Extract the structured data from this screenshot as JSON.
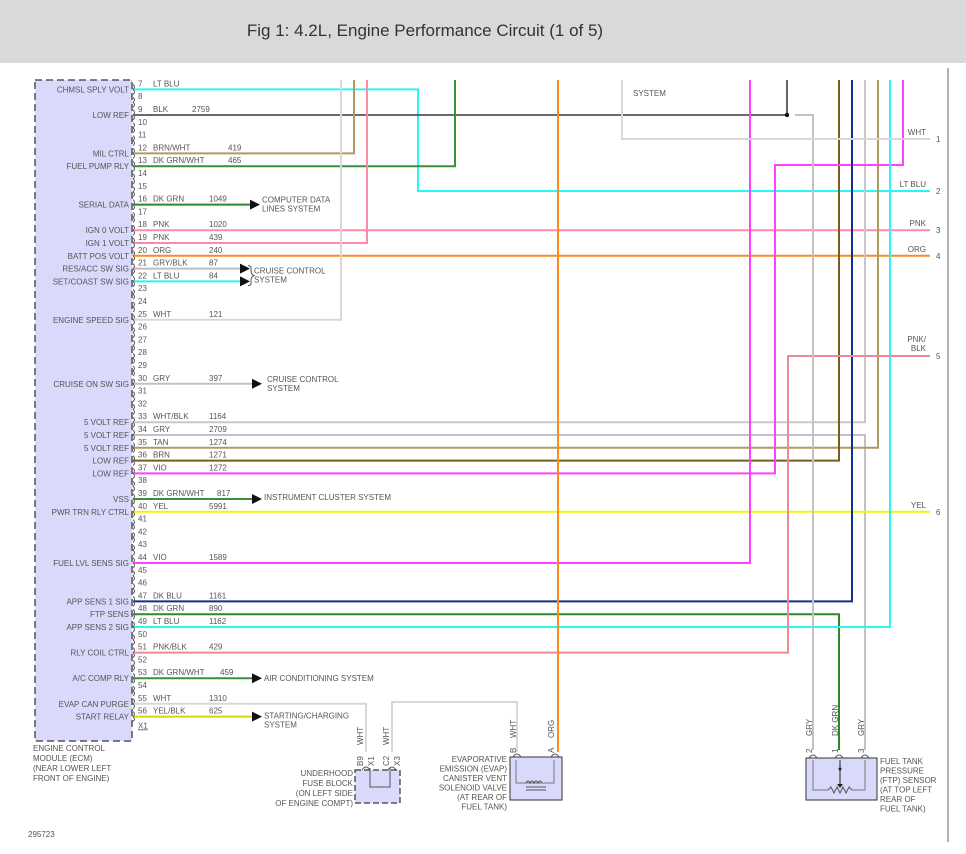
{
  "header": {
    "title": "Fig 1: 4.2L, Engine Performance Circuit (1 of 5)"
  },
  "wire_colors": {
    "BLK": "#555555",
    "BRN/WHT": "#b09a60",
    "DK GRN/WHT": "#3a8f3a",
    "DK GRN": "#2a8a2a",
    "PNK": "#ff8aa8",
    "ORG": "#ff8c1a",
    "GRY/BLK": "#bdbdbd",
    "LT BLU": "#2af5f5",
    "WHT": "#d8d8d8",
    "GRY": "#c2c2c2",
    "WHT/BLK": "#c8c8c8",
    "TAN": "#b09a60",
    "BRN": "#7a5c1e",
    "VIO": "#ff40ff",
    "YEL": "#f5f500",
    "DK BLU": "#12308a",
    "PNK/BLK": "#f08898",
    "YEL/BLK": "#d8d800"
  },
  "ecm": {
    "label": [
      "ENGINE CONTROL",
      "MODULE (ECM)",
      "(NEAR LOWER LEFT",
      "FRONT OF ENGINE)"
    ],
    "connector": "X1",
    "fill": "#d9d9fb",
    "pins": [
      {
        "pin": "7",
        "name": "CHMSL SPLY VOLT",
        "color": "LT BLU",
        "circuit": ""
      },
      {
        "pin": "8"
      },
      {
        "pin": "9",
        "name": "LOW REF",
        "color": "BLK",
        "circuit": "2759"
      },
      {
        "pin": "10"
      },
      {
        "pin": "11"
      },
      {
        "pin": "12",
        "name": "MIL CTRL",
        "color": "BRN/WHT",
        "circuit": "419"
      },
      {
        "pin": "13",
        "name": "FUEL PUMP RLY",
        "color": "DK GRN/WHT",
        "circuit": "465"
      },
      {
        "pin": "14"
      },
      {
        "pin": "15"
      },
      {
        "pin": "16",
        "name": "SERIAL DATA",
        "color": "DK GRN",
        "circuit": "1049"
      },
      {
        "pin": "17"
      },
      {
        "pin": "18",
        "name": "IGN 0 VOLT",
        "color": "PNK",
        "circuit": "1020"
      },
      {
        "pin": "19",
        "name": "IGN 1 VOLT",
        "color": "PNK",
        "circuit": "439"
      },
      {
        "pin": "20",
        "name": "BATT POS VOLT",
        "color": "ORG",
        "circuit": "240"
      },
      {
        "pin": "21",
        "name": "RES/ACC SW SIG",
        "color": "GRY/BLK",
        "circuit": "87"
      },
      {
        "pin": "22",
        "name": "SET/COAST SW SIG",
        "color": "LT BLU",
        "circuit": "84"
      },
      {
        "pin": "23"
      },
      {
        "pin": "24"
      },
      {
        "pin": "25",
        "name": "ENGINE SPEED SIG",
        "color": "WHT",
        "circuit": "121"
      },
      {
        "pin": "26"
      },
      {
        "pin": "27"
      },
      {
        "pin": "28"
      },
      {
        "pin": "29"
      },
      {
        "pin": "30",
        "name": "CRUISE ON SW SIG",
        "color": "GRY",
        "circuit": "397"
      },
      {
        "pin": "31"
      },
      {
        "pin": "32"
      },
      {
        "pin": "33",
        "name": "5 VOLT REF",
        "color": "WHT/BLK",
        "circuit": "1164"
      },
      {
        "pin": "34",
        "name": "5 VOLT REF",
        "color": "GRY",
        "circuit": "2709"
      },
      {
        "pin": "35",
        "name": "5 VOLT REF",
        "color": "TAN",
        "circuit": "1274"
      },
      {
        "pin": "36",
        "name": "LOW REF",
        "color": "BRN",
        "circuit": "1271"
      },
      {
        "pin": "37",
        "name": "LOW REF",
        "color": "VIO",
        "circuit": "1272"
      },
      {
        "pin": "38"
      },
      {
        "pin": "39",
        "name": "VSS",
        "color": "DK GRN/WHT",
        "circuit": "817"
      },
      {
        "pin": "40",
        "name": "PWR TRN RLY CTRL",
        "color": "YEL",
        "circuit": "5991"
      },
      {
        "pin": "41"
      },
      {
        "pin": "42"
      },
      {
        "pin": "43"
      },
      {
        "pin": "44",
        "name": "FUEL LVL SENS SIG",
        "color": "VIO",
        "circuit": "1589"
      },
      {
        "pin": "45"
      },
      {
        "pin": "46"
      },
      {
        "pin": "47",
        "name": "APP SENS 1 SIG",
        "color": "DK BLU",
        "circuit": "1161"
      },
      {
        "pin": "48",
        "name": "FTP SENS",
        "color": "DK GRN",
        "circuit": "890"
      },
      {
        "pin": "49",
        "name": "APP SENS 2 SIG",
        "color": "LT BLU",
        "circuit": "1162"
      },
      {
        "pin": "50"
      },
      {
        "pin": "51",
        "name": "RLY COIL CTRL",
        "color": "PNK/BLK",
        "circuit": "429"
      },
      {
        "pin": "52"
      },
      {
        "pin": "53",
        "name": "A/C COMP RLY",
        "color": "DK GRN/WHT",
        "circuit": "459"
      },
      {
        "pin": "54"
      },
      {
        "pin": "55",
        "name": "EVAP CAN PURGE",
        "color": "WHT",
        "circuit": "1310"
      },
      {
        "pin": "56",
        "name": "START RELAY",
        "color": "YEL/BLK",
        "circuit": "625"
      }
    ]
  },
  "destinations": [
    {
      "pin": "16",
      "label": [
        "COMPUTER DATA",
        "LINES SYSTEM"
      ]
    },
    {
      "pin": "21-22",
      "label": [
        "CRUISE CONTROL",
        "SYSTEM"
      ]
    },
    {
      "pin": "30",
      "label": [
        "CRUISE CONTROL",
        "SYSTEM"
      ]
    },
    {
      "pin": "39",
      "label": [
        "INSTRUMENT CLUSTER SYSTEM"
      ]
    },
    {
      "pin": "53",
      "label": [
        "AIR CONDITIONING SYSTEM"
      ]
    },
    {
      "pin": "56",
      "label": [
        "STARTING/CHARGING",
        "SYSTEM"
      ]
    }
  ],
  "lights_system_label": "SYSTEM",
  "right_connector": [
    {
      "num": "1",
      "color": "WHT"
    },
    {
      "num": "2",
      "color": "LT BLU"
    },
    {
      "num": "3",
      "color": "PNK"
    },
    {
      "num": "4",
      "color": "ORG"
    },
    {
      "num": "5",
      "color": "PNK/ BLK"
    },
    {
      "num": "6",
      "color": "YEL"
    }
  ],
  "fuse_block": {
    "label": [
      "UNDERHOOD",
      "FUSE BLOCK",
      "(ON LEFT SIDE",
      "OF ENGINE COMPT)"
    ],
    "pins": [
      {
        "cavity": "B9",
        "conn": "X1",
        "color": "WHT"
      },
      {
        "cavity": "C2",
        "conn": "X3",
        "color": "WHT"
      }
    ]
  },
  "evap_valve": {
    "label": [
      "EVAPORATIVE",
      "EMISSION (EVAP)",
      "CANISTER VENT",
      "SOLENOID VALVE",
      "(AT REAR OF",
      "FUEL TANK)"
    ],
    "pins": [
      {
        "pin": "B",
        "color": "WHT"
      },
      {
        "pin": "A",
        "color": "ORG"
      }
    ]
  },
  "ftp_sensor": {
    "label": [
      "FUEL TANK",
      "PRESSURE",
      "(FTP) SENSOR",
      "(AT TOP LEFT",
      "REAR OF",
      "FUEL TANK)"
    ],
    "pins": [
      {
        "pin": "2",
        "color": "GRY"
      },
      {
        "pin": "1",
        "color": "DK GRN"
      },
      {
        "pin": "3",
        "color": "GRY"
      }
    ]
  },
  "figure_id": "295723"
}
